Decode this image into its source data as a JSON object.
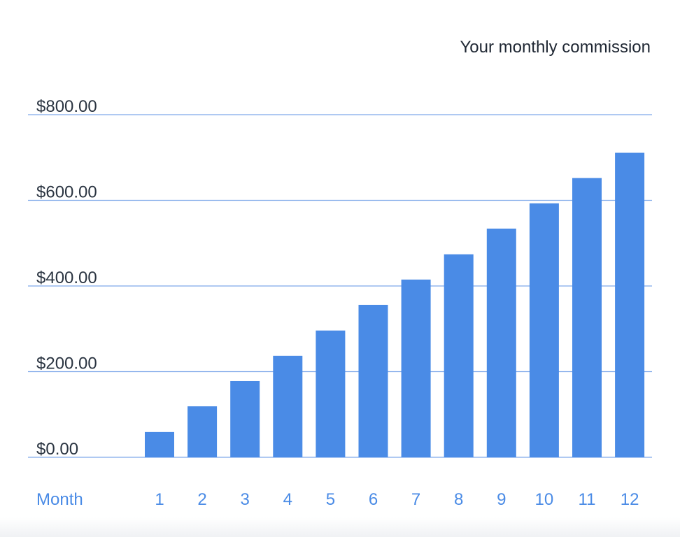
{
  "chart_data": {
    "type": "bar",
    "title": "Your monthly commission",
    "xlabel": "Month",
    "ylabel": "",
    "categories": [
      "1",
      "2",
      "3",
      "4",
      "5",
      "6",
      "7",
      "8",
      "9",
      "10",
      "11",
      "12"
    ],
    "values": [
      59,
      119,
      178,
      237,
      296,
      356,
      415,
      474,
      534,
      593,
      652,
      711
    ],
    "ylim": [
      0,
      800
    ],
    "yticks": [
      0,
      200,
      400,
      600,
      800
    ],
    "ytick_labels": [
      "$0.00",
      "$200.00",
      "$400.00",
      "$600.00",
      "$800.00"
    ],
    "grid": true,
    "legend": "none",
    "colors": {
      "bar": "#4a8be6",
      "grid": "#7fa9ea",
      "tick_text": "#2a3441",
      "x_text": "#4a8be6"
    }
  }
}
